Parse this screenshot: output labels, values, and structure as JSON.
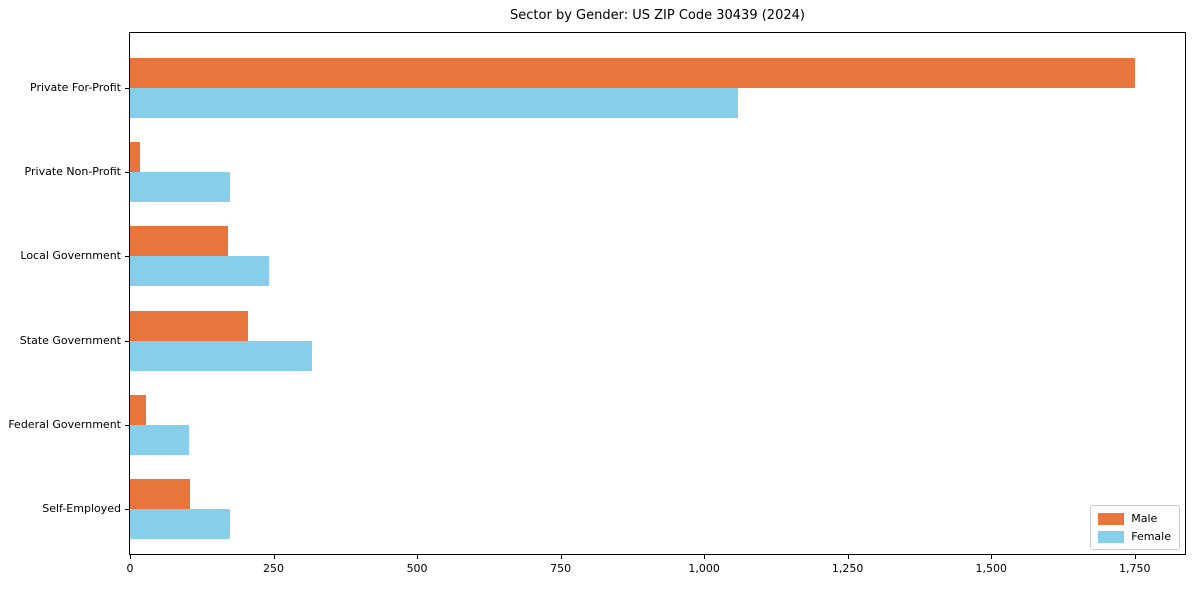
{
  "chart_data": {
    "type": "bar",
    "orientation": "horizontal",
    "title": "Sector by Gender: US ZIP Code 30439 (2024)",
    "xlabel": "",
    "ylabel": "",
    "categories": [
      "Private For-Profit",
      "Private Non-Profit",
      "Local Government",
      "State Government",
      "Federal Government",
      "Self-Employed"
    ],
    "series": [
      {
        "name": "Male",
        "color": "#e8763c",
        "values": [
          1750,
          18,
          171,
          206,
          27,
          105
        ]
      },
      {
        "name": "Female",
        "color": "#87ceeb",
        "values": [
          1059,
          174,
          242,
          317,
          102,
          174
        ]
      }
    ],
    "xlim": [
      0,
      1837.5
    ],
    "xticks": [
      0,
      250,
      500,
      750,
      1000,
      1250,
      1500,
      1750
    ],
    "xtick_labels": [
      "0",
      "250",
      "500",
      "750",
      "1,000",
      "1,250",
      "1,500",
      "1,750"
    ],
    "grid": false,
    "legend_position": "lower right",
    "frame": "full-box"
  }
}
